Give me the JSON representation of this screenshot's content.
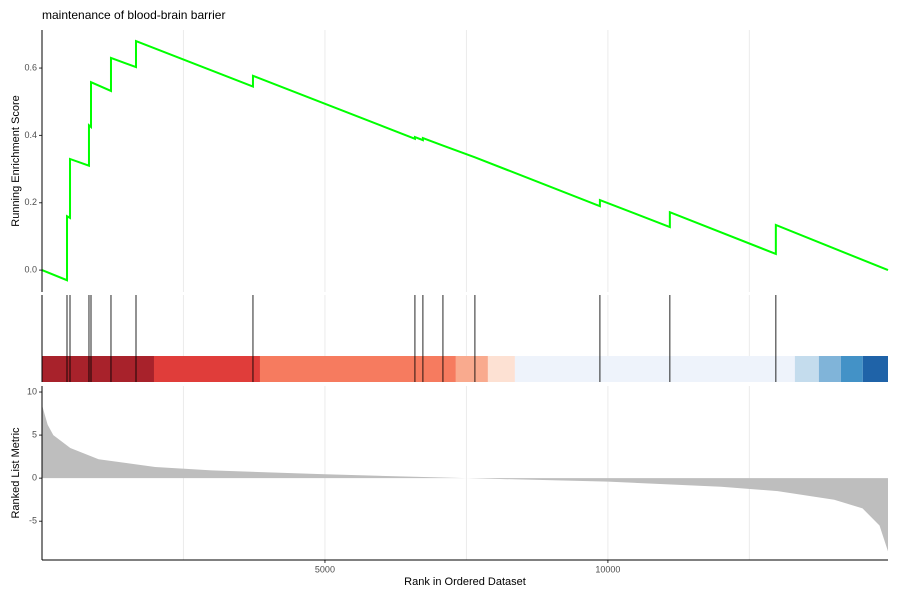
{
  "chart_data": [
    {
      "type": "line",
      "title": "maintenance of blood-brain barrier",
      "ylabel": "Running Enrichment Score",
      "xlim": [
        0,
        14950
      ],
      "ylim": [
        -0.065,
        0.713
      ],
      "yticks": [
        {
          "value": 0,
          "label": "0.0"
        },
        0.2,
        0.4,
        0.6
      ],
      "xgrid": [
        2500,
        5000,
        7500,
        10000,
        12500
      ],
      "series": [
        {
          "color": "#00ff00",
          "x": [
            0,
            442,
            442,
            495,
            495,
            830,
            830,
            866,
            866,
            1219,
            1219,
            1661,
            1661,
            3728,
            3728,
            6590,
            6590,
            6731,
            6731,
            7085,
            7650,
            9859,
            9859,
            11095,
            11095,
            12968,
            12968,
            14950
          ],
          "values": [
            0,
            -0.03,
            0.16,
            0.155,
            0.33,
            0.31,
            0.43,
            0.425,
            0.558,
            0.532,
            0.63,
            0.603,
            0.68,
            0.545,
            0.577,
            0.39,
            0.395,
            0.386,
            0.392,
            0.37,
            0.335,
            0.19,
            0.208,
            0.128,
            0.172,
            0.048,
            0.134,
            0
          ]
        }
      ]
    },
    {
      "type": "rug",
      "xlim": [
        0,
        14950
      ],
      "color": "#000000",
      "xgrid": [
        2500,
        5000,
        7500,
        10000,
        12500
      ],
      "hits": [
        442,
        495,
        830,
        866,
        1219,
        1661,
        3728,
        6590,
        6731,
        7085,
        7650,
        9859,
        11095,
        12968
      ],
      "bands": {
        "bins": [
          0,
          1979,
          3852,
          7314,
          7880,
          8357,
          13304,
          13728,
          14117,
          14505,
          14950
        ],
        "colors": [
          "#a8222b",
          "#e03d3a",
          "#f67b5f",
          "#f9aa8e",
          "#fde1d3",
          "#eef3fb",
          "#c4dced",
          "#80b4d9",
          "#4392c7",
          "#1f63a8"
        ]
      }
    },
    {
      "type": "area",
      "ylabel": "Ranked List Metric",
      "xlabel": "Rank in Ordered Dataset",
      "xlim": [
        0,
        14950
      ],
      "ylim": [
        -9.5,
        10.7
      ],
      "xticks": [
        5000,
        10000
      ],
      "yticks": [
        10,
        5,
        0,
        -5
      ],
      "xgrid": [
        2500,
        5000,
        7500,
        10000,
        12500
      ],
      "color": "#bebebe",
      "x": [
        0,
        100,
        200,
        500,
        1000,
        2000,
        3000,
        5000,
        7500,
        10000,
        12000,
        13000,
        14000,
        14500,
        14800,
        14950
      ],
      "values": [
        8.5,
        6.2,
        5,
        3.5,
        2.2,
        1.3,
        0.9,
        0.45,
        0,
        -0.4,
        -1,
        -1.5,
        -2.5,
        -3.5,
        -5.5,
        -8.5
      ]
    }
  ]
}
